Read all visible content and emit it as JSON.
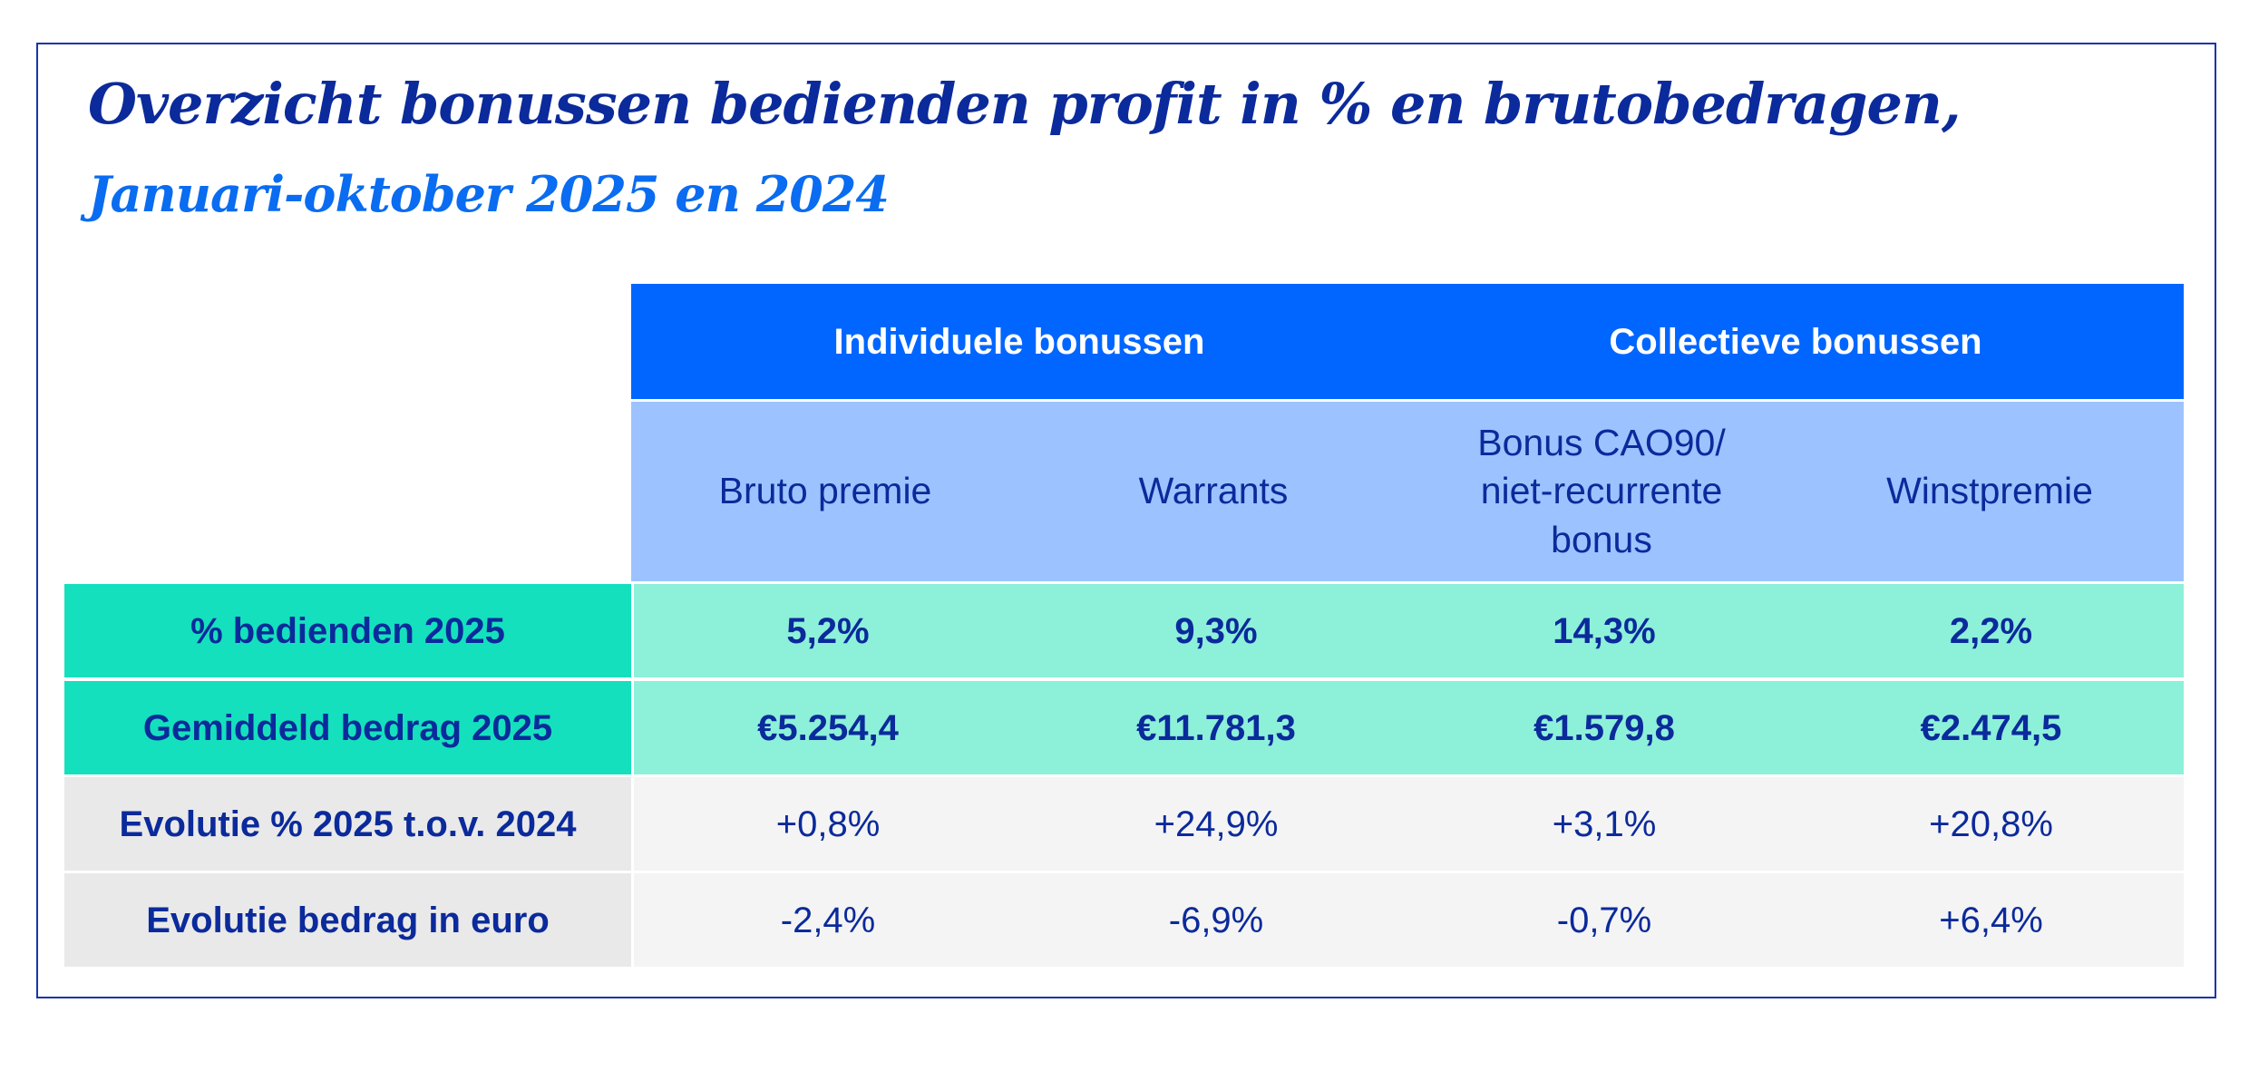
{
  "title": "Overzicht bonussen bedienden profit in % en brutobedragen,",
  "subtitle": "Januari-oktober 2025 en 2024",
  "table": {
    "groups": [
      "Individuele bonussen",
      "Collectieve bonussen"
    ],
    "columns": [
      "Bruto premie",
      "Warrants",
      "Bonus CAO90/ niet-recurrente bonus",
      "Winstpremie"
    ],
    "rows": [
      {
        "label": "% bedienden 2025",
        "values": [
          "5,2%",
          "9,3%",
          "14,3%",
          "2,2%"
        ]
      },
      {
        "label": "Gemiddeld bedrag 2025",
        "values": [
          "€5.254,4",
          "€11.781,3",
          "€1.579,8",
          "€2.474,5"
        ]
      },
      {
        "label": "Evolutie % 2025 t.o.v. 2024",
        "values": [
          "+0,8%",
          "+24,9%",
          "+3,1%",
          "+20,8%"
        ]
      },
      {
        "label": "Evolutie bedrag in euro",
        "values": [
          "-2,4%",
          "-6,9%",
          "-0,7%",
          "+6,4%"
        ]
      }
    ]
  },
  "colors": {
    "dark_blue": "#0b2a9b",
    "header_blue": "#0066ff",
    "light_blue": "#9cc3ff",
    "teal": "#14e0bd",
    "light_teal": "#8df0d9",
    "grey": "#e9e9e9",
    "light_grey": "#f4f4f4"
  }
}
